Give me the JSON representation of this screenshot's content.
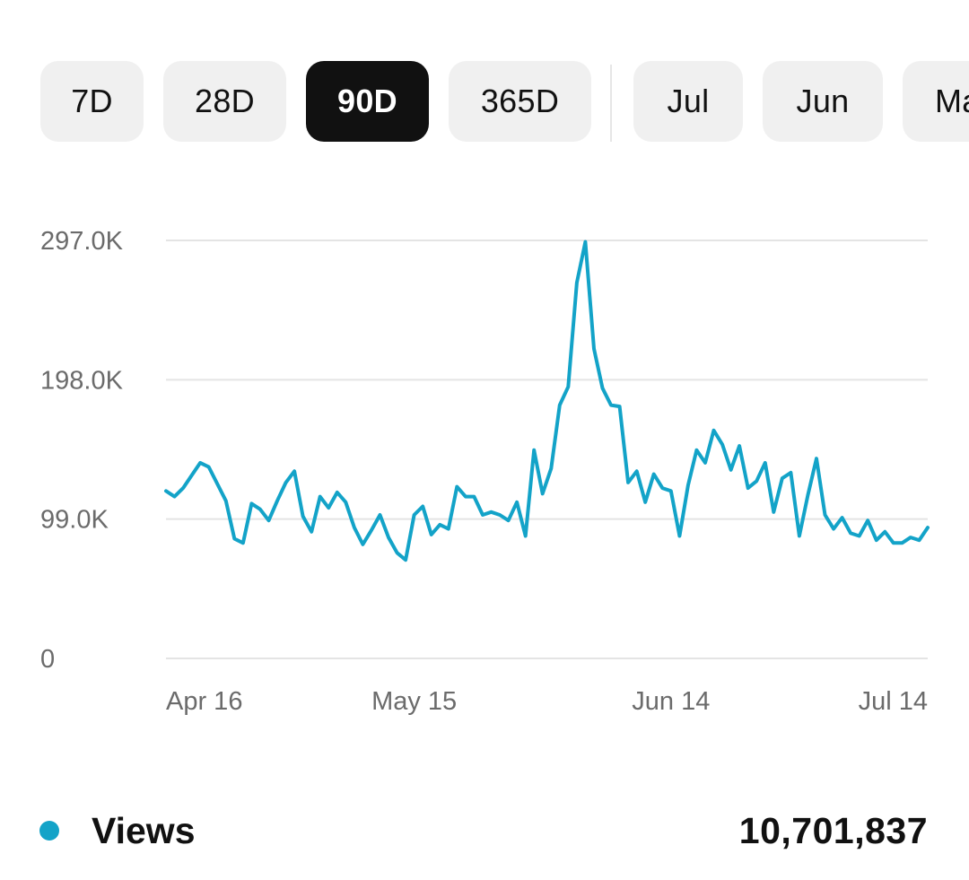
{
  "range_tabs": [
    {
      "label": "7D",
      "active": false
    },
    {
      "label": "28D",
      "active": false
    },
    {
      "label": "90D",
      "active": true
    },
    {
      "label": "365D",
      "active": false
    }
  ],
  "month_tabs": [
    {
      "label": "Jul",
      "active": false
    },
    {
      "label": "Jun",
      "active": false
    },
    {
      "label": "Ma",
      "active": false
    }
  ],
  "colors": {
    "series": "#13a3c8",
    "grid": "#e4e4e4",
    "active_tab_bg": "#111111",
    "tab_bg": "#f0f0f0"
  },
  "chart_data": {
    "type": "line",
    "grid": true,
    "y_ticks": [
      {
        "value": 0,
        "label": "0"
      },
      {
        "value": 99000,
        "label": "99.0K"
      },
      {
        "value": 198000,
        "label": "198.0K"
      },
      {
        "value": 297000,
        "label": "297.0K"
      }
    ],
    "ylim": [
      0,
      297000
    ],
    "x_ticks": [
      {
        "index": 0,
        "label": "Apr 16"
      },
      {
        "index": 29,
        "label": "May 15"
      },
      {
        "index": 59,
        "label": "Jun 14"
      },
      {
        "index": 89,
        "label": "Jul 14"
      }
    ],
    "series": [
      {
        "name": "Views",
        "values": [
          119000,
          115000,
          121000,
          130000,
          139000,
          136000,
          124000,
          112000,
          85000,
          82000,
          110000,
          106000,
          98000,
          112000,
          125000,
          133000,
          101000,
          90000,
          115000,
          107000,
          118000,
          111000,
          93000,
          81000,
          91000,
          102000,
          86000,
          75000,
          70000,
          102000,
          108000,
          88000,
          95000,
          92000,
          122000,
          115000,
          115000,
          102000,
          104000,
          102000,
          98000,
          111000,
          87000,
          148000,
          117000,
          135000,
          180000,
          193000,
          267000,
          296000,
          220000,
          192000,
          180000,
          179000,
          125000,
          133000,
          111000,
          131000,
          121000,
          119000,
          87000,
          123000,
          148000,
          139000,
          162000,
          152000,
          134000,
          151000,
          121000,
          126000,
          139000,
          104000,
          128000,
          132000,
          87000,
          116000,
          142000,
          102000,
          92000,
          100000,
          89000,
          87000,
          98000,
          84000,
          90000,
          82000,
          82000,
          86000,
          84000,
          93000
        ]
      }
    ]
  },
  "legend": {
    "series_label": "Views",
    "total_value": "10,701,837"
  }
}
